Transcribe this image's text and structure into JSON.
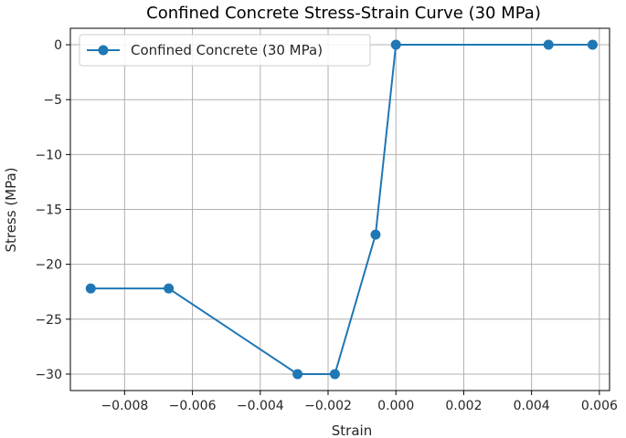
{
  "chart_data": {
    "type": "line",
    "title": "Confined Concrete Stress-Strain Curve (30 MPa)",
    "xlabel": "Strain",
    "ylabel": "Stress (MPa)",
    "xlim": [
      -0.0096,
      0.0063
    ],
    "ylim": [
      -31.5,
      1.5
    ],
    "xticks": [
      -0.008,
      -0.006,
      -0.004,
      -0.002,
      0.0,
      0.002,
      0.004,
      0.006
    ],
    "xtick_labels": [
      "−0.008",
      "−0.006",
      "−0.004",
      "−0.002",
      "0.000",
      "0.002",
      "0.004",
      "0.006"
    ],
    "yticks": [
      0,
      -5,
      -10,
      -15,
      -20,
      -25,
      -30
    ],
    "ytick_labels": [
      "0",
      "−5",
      "−10",
      "−15",
      "−20",
      "−25",
      "−30"
    ],
    "grid": true,
    "legend_position": "top-left",
    "colors": {
      "series": "#1f77b4",
      "grid": "#b0b0b0",
      "axis": "#000000"
    },
    "series": [
      {
        "name": "Confined Concrete (30 MPa)",
        "marker": "circle",
        "points": [
          {
            "x": -0.009,
            "y": -22.2
          },
          {
            "x": -0.0067,
            "y": -22.2
          },
          {
            "x": -0.0029,
            "y": -30.0
          },
          {
            "x": -0.0018,
            "y": -30.0
          },
          {
            "x": -0.0006,
            "y": -17.3
          },
          {
            "x": 0.0,
            "y": 0.0
          },
          {
            "x": 0.0045,
            "y": 0.0
          },
          {
            "x": 0.0058,
            "y": 0.0
          }
        ]
      }
    ]
  }
}
